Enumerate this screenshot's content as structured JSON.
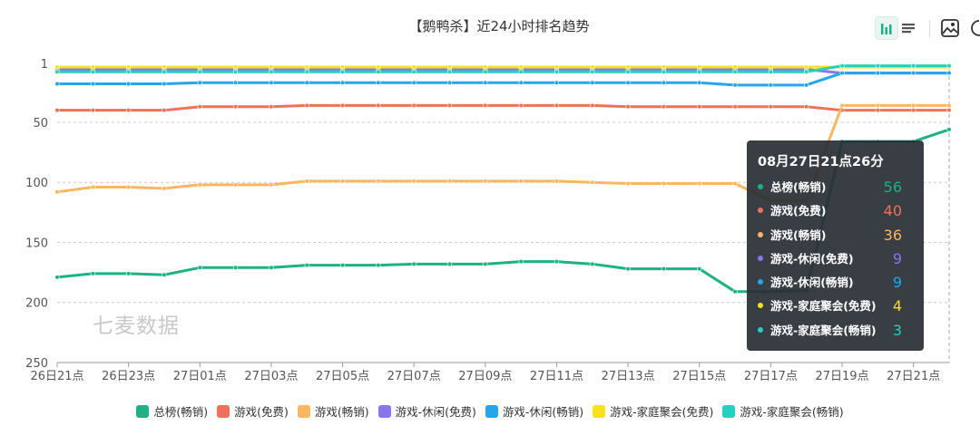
{
  "title": "【鹅鸭杀】近24小时排名趋势",
  "toolbar": {
    "chart_view_icon": "bar-chart-icon",
    "list_view_icon": "list-icon",
    "save_image_icon": "image-icon",
    "refresh_icon": "refresh-icon"
  },
  "watermark": "七麦数据",
  "colors": {
    "grid": "#cccccc",
    "axis_text": "#555555",
    "tooltip_bg": "#2c3038"
  },
  "chart_data": {
    "type": "line",
    "title": "【鹅鸭杀】近24小时排名趋势",
    "xlabel": "",
    "ylabel": "",
    "y_inverted": true,
    "ylim": [
      1,
      250
    ],
    "y_ticks": [
      1,
      50,
      100,
      150,
      200,
      250
    ],
    "x_ticks": [
      "26日21点",
      "26日23点",
      "27日01点",
      "27日03点",
      "27日05点",
      "27日07点",
      "27日09点",
      "27日11点",
      "27日13点",
      "27日15点",
      "27日17点",
      "27日19点",
      "27日21点"
    ],
    "grid": "horizontal-dashed",
    "legend_position": "bottom",
    "series": [
      {
        "name": "总榜(畅销)",
        "color": "#1bb286",
        "values": [
          179,
          176,
          176,
          177,
          171,
          171,
          171,
          169,
          169,
          169,
          168,
          168,
          168,
          166,
          166,
          168,
          172,
          172,
          172,
          191,
          191,
          190,
          66,
          66,
          66,
          56
        ]
      },
      {
        "name": "游戏(免费)",
        "color": "#f0705a",
        "values": [
          40,
          40,
          40,
          40,
          37,
          37,
          37,
          36,
          36,
          36,
          36,
          36,
          36,
          36,
          36,
          36,
          37,
          37,
          37,
          37,
          37,
          37,
          40,
          40,
          40,
          40
        ]
      },
      {
        "name": "游戏(畅销)",
        "color": "#fbb760",
        "values": [
          108,
          104,
          104,
          105,
          102,
          102,
          102,
          99,
          99,
          99,
          99,
          99,
          99,
          99,
          99,
          100,
          101,
          101,
          101,
          101,
          115,
          115,
          36,
          36,
          36,
          36
        ]
      },
      {
        "name": "游戏-休闲(免费)",
        "color": "#8b74f0",
        "values": [
          6,
          6,
          6,
          6,
          6,
          6,
          6,
          6,
          6,
          6,
          6,
          6,
          6,
          6,
          6,
          6,
          6,
          6,
          6,
          6,
          6,
          6,
          9,
          9,
          9,
          9
        ]
      },
      {
        "name": "游戏-休闲(畅销)",
        "color": "#22a6ee",
        "values": [
          18,
          18,
          18,
          18,
          17,
          17,
          17,
          17,
          17,
          17,
          17,
          17,
          17,
          17,
          17,
          17,
          17,
          17,
          17,
          19,
          19,
          19,
          9,
          9,
          9,
          9
        ]
      },
      {
        "name": "游戏-家庭聚会(免费)",
        "color": "#f9e11b",
        "values": [
          4,
          4,
          4,
          4,
          4,
          4,
          4,
          4,
          4,
          4,
          4,
          4,
          4,
          4,
          4,
          4,
          4,
          4,
          4,
          4,
          4,
          4,
          4,
          4,
          4,
          4
        ]
      },
      {
        "name": "游戏-家庭聚会(畅销)",
        "color": "#22d1c0",
        "values": [
          8,
          8,
          8,
          8,
          8,
          8,
          8,
          8,
          8,
          8,
          8,
          8,
          8,
          8,
          8,
          8,
          8,
          8,
          8,
          8,
          8,
          8,
          3,
          3,
          3,
          3
        ]
      }
    ]
  },
  "tooltip": {
    "title": "08月27日21点26分",
    "rows": [
      {
        "label": "总榜(畅销)",
        "value": "56",
        "color": "#1bb286"
      },
      {
        "label": "游戏(免费)",
        "value": "40",
        "color": "#f0705a"
      },
      {
        "label": "游戏(畅销)",
        "value": "36",
        "color": "#fbb760"
      },
      {
        "label": "游戏-休闲(免费)",
        "value": "9",
        "color": "#8b74f0"
      },
      {
        "label": "游戏-休闲(畅销)",
        "value": "9",
        "color": "#22a6ee"
      },
      {
        "label": "游戏-家庭聚会(免费)",
        "value": "4",
        "color": "#f9e11b"
      },
      {
        "label": "游戏-家庭聚会(畅销)",
        "value": "3",
        "color": "#22d1c0"
      }
    ]
  }
}
